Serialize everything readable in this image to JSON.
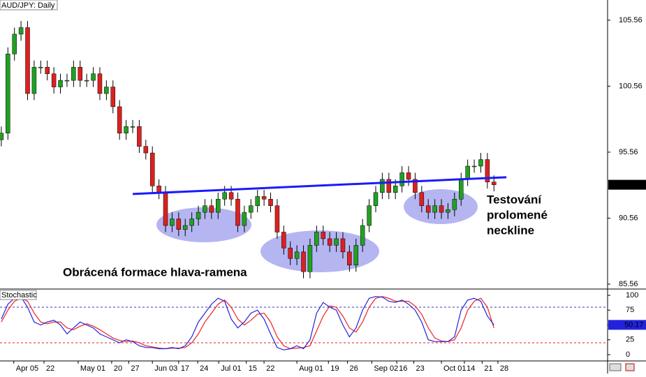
{
  "chart_data": [
    {
      "type": "candlestick",
      "title": "AUD/JPY: Daily",
      "xlim": [
        -0.2,
        92.3
      ],
      "ylim": [
        85.24,
        107.09
      ],
      "yticks": [
        85.56,
        90.56,
        95.56,
        100.56,
        105.56
      ],
      "up_color": "#22a022",
      "down_color": "#dd2020",
      "open": [
        96.5,
        97,
        103,
        104.5,
        105,
        100,
        102,
        102,
        101.5,
        100.5,
        101,
        101,
        102,
        101,
        101,
        101.5,
        100,
        100.5,
        99,
        97,
        97.5,
        97.5,
        96,
        95.5,
        93,
        92.5,
        90,
        90.5,
        89.7,
        90,
        90.5,
        91,
        91.5,
        91,
        92,
        92.5,
        92,
        90,
        91,
        91.5,
        92.2,
        92,
        91.5,
        89.5,
        88.3,
        87.5,
        88,
        86.5,
        88.5,
        89.5,
        89,
        88.5,
        89,
        88,
        87,
        88.5,
        90,
        91.5,
        92.5,
        93.5,
        92.5,
        93,
        94,
        93.5,
        92.5,
        91.5,
        91,
        91.5,
        91,
        91.2,
        92,
        93.5,
        94.5,
        94.5,
        95,
        93.3
      ],
      "high": [
        97.5,
        103.5,
        105,
        105.5,
        105.5,
        102.5,
        102.5,
        102.5,
        102,
        101.5,
        101.5,
        102.5,
        102.5,
        101.5,
        102,
        102,
        101,
        101,
        99.5,
        98,
        98,
        98,
        96.5,
        96,
        93.5,
        93,
        91,
        91,
        90.5,
        91,
        91.5,
        92,
        92,
        92.5,
        93,
        93,
        92.5,
        91.5,
        92,
        92.7,
        92.7,
        92.5,
        92,
        90,
        88.8,
        88.5,
        88.5,
        89,
        90,
        90,
        89.5,
        89.5,
        89.5,
        88.5,
        89,
        90.5,
        92,
        93,
        94,
        94,
        93.5,
        94.5,
        94.5,
        94,
        93,
        92,
        92,
        92,
        91.7,
        92.5,
        94,
        95,
        95,
        95.5,
        95.5,
        93.8
      ],
      "low": [
        96,
        96.5,
        102.5,
        104,
        99.5,
        99.5,
        101.5,
        101,
        100,
        100,
        100.5,
        100.5,
        100.5,
        100.5,
        100.5,
        99.5,
        99.5,
        98.5,
        96.5,
        96.5,
        97,
        95.5,
        95,
        92.5,
        92,
        89.5,
        89.5,
        89.2,
        89.2,
        89.5,
        90,
        90.5,
        90.5,
        90.5,
        91.5,
        91.5,
        89.5,
        89.5,
        90.5,
        91,
        91.5,
        91,
        89,
        87.8,
        87,
        87,
        86,
        86,
        88,
        88.5,
        88,
        88,
        87.5,
        86.5,
        86.5,
        88,
        89.5,
        91,
        92,
        92,
        92,
        92.5,
        93,
        92,
        91,
        90.5,
        90.5,
        90.5,
        90.5,
        90.7,
        91.5,
        93,
        94,
        94,
        92.8,
        92.59
      ],
      "close": [
        97,
        103,
        104.5,
        105,
        100,
        102,
        102,
        101.5,
        100.5,
        101,
        101,
        102,
        101,
        101,
        101.5,
        100,
        100.5,
        99,
        97,
        97.5,
        97.5,
        96,
        95.5,
        93,
        92.5,
        90,
        90.5,
        89.7,
        90,
        90.5,
        91,
        91.5,
        91,
        92,
        92.5,
        92,
        90,
        91,
        91.5,
        92.2,
        92,
        91.5,
        89.5,
        88.3,
        87.5,
        88,
        86.5,
        88.5,
        89.5,
        89,
        88.5,
        89,
        88,
        87,
        88.5,
        90,
        91.5,
        92.5,
        93.5,
        92.5,
        93,
        94,
        93.5,
        92.5,
        91.5,
        91,
        91.5,
        91,
        91.2,
        92,
        93.5,
        94.5,
        94.5,
        95,
        93.3,
        93.09
      ],
      "trendline": {
        "x": [
          20,
          76.9
        ],
        "y": [
          92.39,
          93.66
        ],
        "color": "#1a1aff"
      },
      "annotations": [
        "Obrácená formace hlava-ramena",
        [
          "Testování",
          "prolomené",
          "neckline"
        ]
      ]
    },
    {
      "type": "line",
      "title": "Stochastic",
      "xlim": [
        -0.2,
        92.3
      ],
      "ylim": [
        -10.6,
        109.4
      ],
      "yticks": [
        0,
        25,
        50,
        75,
        100
      ],
      "levels": [
        {
          "value": 80,
          "color": "#3333cc"
        },
        {
          "value": 20,
          "color": "#dd2222"
        }
      ],
      "xticks": [
        {
          "value": 1.9,
          "label": "Apr 05"
        },
        {
          "value": 6.5,
          "label": "22"
        },
        {
          "value": 11.7,
          "label": "May 01"
        },
        {
          "value": 16.8,
          "label": "20"
        },
        {
          "value": 19.4,
          "label": "27"
        },
        {
          "value": 23,
          "label": "Jun 03"
        },
        {
          "value": 27,
          "label": "17"
        },
        {
          "value": 29.9,
          "label": "24"
        },
        {
          "value": 33.1,
          "label": "Jul 01"
        },
        {
          "value": 37.3,
          "label": "15"
        },
        {
          "value": 40,
          "label": "22"
        },
        {
          "value": 45,
          "label": "Aug 01"
        },
        {
          "value": 49.8,
          "label": "19"
        },
        {
          "value": 52.7,
          "label": "26"
        },
        {
          "value": 56.4,
          "label": "Sep 02"
        },
        {
          "value": 60.2,
          "label": "16"
        },
        {
          "value": 62.8,
          "label": "23"
        },
        {
          "value": 67,
          "label": "Oct 01"
        },
        {
          "value": 70.5,
          "label": "14"
        },
        {
          "value": 73.2,
          "label": "21"
        },
        {
          "value": 75.6,
          "label": "28"
        }
      ],
      "series": [
        {
          "color": "#2222dd",
          "values": [
            60,
            85,
            95,
            97,
            80,
            55,
            50,
            55,
            58,
            50,
            35,
            45,
            55,
            50,
            45,
            35,
            30,
            25,
            20,
            25,
            22,
            15,
            12,
            12,
            10,
            10,
            12,
            10,
            15,
            30,
            55,
            70,
            85,
            95,
            90,
            60,
            45,
            55,
            70,
            75,
            60,
            35,
            12,
            8,
            10,
            15,
            10,
            25,
            70,
            88,
            80,
            75,
            50,
            30,
            45,
            75,
            95,
            98,
            97,
            90,
            88,
            92,
            85,
            75,
            55,
            25,
            22,
            22,
            22,
            30,
            75,
            92,
            95,
            90,
            65,
            50.17
          ]
        },
        {
          "color": "#ee2222",
          "values": [
            55,
            75,
            90,
            95,
            90,
            70,
            55,
            52,
            55,
            55,
            45,
            42,
            48,
            52,
            48,
            42,
            35,
            28,
            24,
            22,
            23,
            20,
            15,
            13,
            11,
            10,
            11,
            11,
            12,
            20,
            35,
            55,
            70,
            85,
            92,
            80,
            60,
            50,
            58,
            68,
            70,
            55,
            30,
            15,
            10,
            11,
            12,
            15,
            40,
            65,
            82,
            80,
            65,
            45,
            38,
            55,
            80,
            95,
            98,
            95,
            90,
            90,
            90,
            82,
            68,
            45,
            28,
            23,
            22,
            25,
            45,
            75,
            90,
            95,
            80,
            45
          ]
        }
      ]
    }
  ]
}
